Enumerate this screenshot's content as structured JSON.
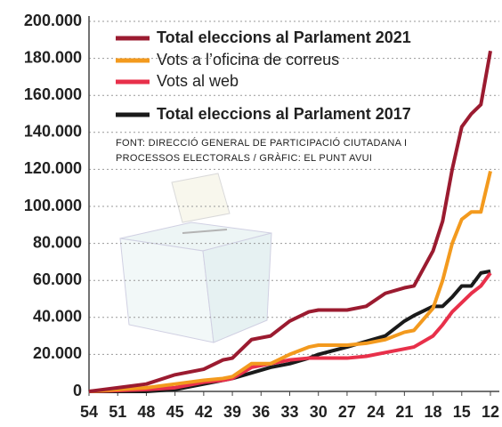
{
  "chart_data": {
    "type": "line",
    "x": [
      54,
      51,
      48,
      45,
      42,
      40,
      39,
      37,
      35,
      33,
      31,
      30,
      27,
      25,
      23,
      21,
      20,
      18,
      17,
      16,
      15,
      14,
      13,
      12
    ],
    "xlim": [
      54,
      12
    ],
    "xticks": [
      54,
      51,
      48,
      45,
      42,
      39,
      36,
      33,
      30,
      27,
      24,
      21,
      18,
      15,
      12
    ],
    "ylim": [
      0,
      200000
    ],
    "yticks": [
      0,
      {
        "value": 20000,
        "label": "20.000"
      },
      {
        "value": 40000,
        "label": "40.000"
      },
      {
        "value": 60000,
        "label": "60.000"
      },
      {
        "value": 80000,
        "label": "80.000"
      },
      {
        "value": 100000,
        "label": "100.000"
      },
      {
        "value": 120000,
        "label": "120.000"
      },
      {
        "value": 140000,
        "label": "140.000"
      },
      {
        "value": 160000,
        "label": "160.000"
      },
      {
        "value": 180000,
        "label": "180.000"
      },
      {
        "value": 200000,
        "label": "200.000"
      }
    ],
    "grid": true,
    "series": [
      {
        "name": "Total eleccions al Parlament 2021",
        "color": "#9b1b30",
        "values": [
          0,
          2000,
          4000,
          9000,
          12000,
          17000,
          18000,
          28000,
          30000,
          38000,
          43000,
          44000,
          44000,
          46000,
          53000,
          56000,
          57000,
          76000,
          92000,
          120000,
          143000,
          150000,
          155000,
          184000
        ]
      },
      {
        "name": "Vots a l’oficina de correus",
        "color": "#f39a1e",
        "values": [
          0,
          1000,
          2000,
          4000,
          6000,
          7000,
          8000,
          15000,
          15000,
          20000,
          24000,
          25000,
          25000,
          26000,
          28000,
          32000,
          33000,
          45000,
          60000,
          80000,
          93000,
          97000,
          97000,
          119000
        ]
      },
      {
        "name": "Vots al web",
        "color": "#e8304a",
        "values": [
          0,
          500,
          1000,
          2000,
          5000,
          6000,
          7000,
          13000,
          15000,
          17000,
          18000,
          18000,
          18000,
          19000,
          21000,
          23000,
          24000,
          30000,
          36000,
          43000,
          48000,
          53000,
          57000,
          64000
        ]
      },
      {
        "name": "Total eleccions al Parlament 2017",
        "color": "#1a1a1a",
        "values": [
          0,
          0,
          0,
          1000,
          4000,
          6000,
          7000,
          10000,
          13000,
          15000,
          18000,
          20000,
          24000,
          27000,
          30000,
          38000,
          41000,
          46000,
          46000,
          51000,
          57000,
          57000,
          64000,
          65000
        ]
      }
    ],
    "note": [
      "FONT: DIRECCIÓ GENERAL DE PARTICIPACIÓ CIUTADANA I",
      "PROCESSOS ELECTORALS / GRÀFIC: EL PUNT AVUI"
    ]
  }
}
